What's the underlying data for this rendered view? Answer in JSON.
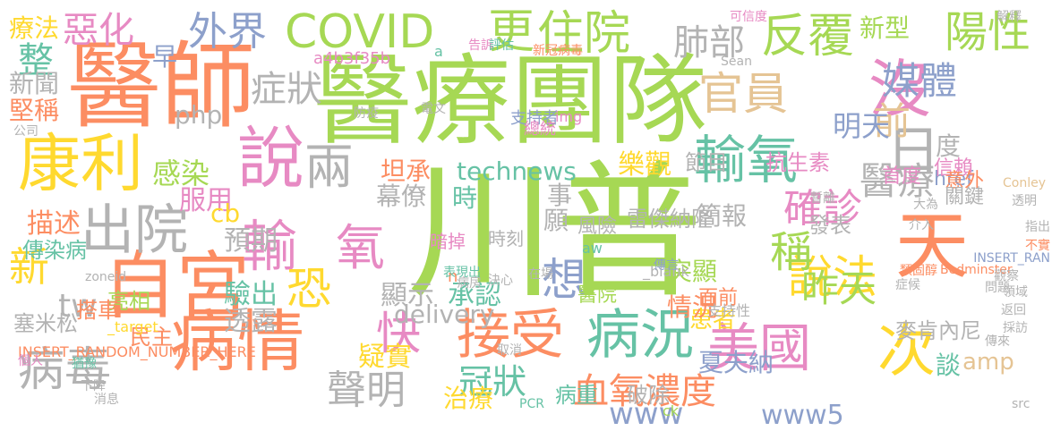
{
  "palette": {
    "green": "#a6d854",
    "orange": "#fc8d62",
    "yellow": "#ffd92f",
    "blue": "#8da0cb",
    "pink": "#e78ac3",
    "gray": "#b3b3b3",
    "tan": "#e5c494",
    "teal": "#66c2a5"
  },
  "words": [
    {
      "text": "川普",
      "color": "green"
    },
    {
      "text": "醫療團隊",
      "color": "green"
    },
    {
      "text": "醫師",
      "color": "orange"
    },
    {
      "text": "自宮",
      "color": "orange"
    },
    {
      "text": "天",
      "color": "orange"
    },
    {
      "text": "說",
      "color": "pink"
    },
    {
      "text": "康利",
      "color": "yellow"
    },
    {
      "text": "病情",
      "color": "orange"
    },
    {
      "text": "出院",
      "color": "gray"
    },
    {
      "text": "輸氧",
      "color": "teal"
    },
    {
      "text": "輸",
      "color": "pink"
    },
    {
      "text": "氧",
      "color": "pink"
    },
    {
      "text": "兩",
      "color": "gray"
    },
    {
      "text": "日",
      "color": "gray"
    },
    {
      "text": "沒",
      "color": "pink"
    },
    {
      "text": "接受",
      "color": "orange"
    },
    {
      "text": "病況",
      "color": "teal"
    },
    {
      "text": "美國",
      "color": "pink"
    },
    {
      "text": "次",
      "color": "yellow"
    },
    {
      "text": "病毒",
      "color": "gray"
    },
    {
      "text": "說法",
      "color": "yellow"
    },
    {
      "text": "確診",
      "color": "pink"
    },
    {
      "text": "稱",
      "color": "green"
    },
    {
      "text": "前",
      "color": "tan"
    },
    {
      "text": "COVID",
      "color": "green"
    },
    {
      "text": "更",
      "color": "green"
    },
    {
      "text": "住院",
      "color": "green"
    },
    {
      "text": "反覆",
      "color": "green"
    },
    {
      "text": "陽性",
      "color": "green"
    },
    {
      "text": "外界",
      "color": "blue"
    },
    {
      "text": "惡化",
      "color": "pink"
    },
    {
      "text": "肺部",
      "color": "gray"
    },
    {
      "text": "官員",
      "color": "tan"
    },
    {
      "text": "媒體",
      "color": "blue"
    },
    {
      "text": "新型",
      "color": "green"
    },
    {
      "text": "症狀",
      "color": "gray"
    },
    {
      "text": "恐",
      "color": "yellow"
    },
    {
      "text": "快",
      "color": "pink"
    },
    {
      "text": "想",
      "color": "blue"
    },
    {
      "text": "新",
      "color": "yellow"
    },
    {
      "text": "tw",
      "color": "gray"
    },
    {
      "text": "聲明",
      "color": "gray"
    },
    {
      "text": "冠狀",
      "color": "teal"
    },
    {
      "text": "血氧",
      "color": "orange"
    },
    {
      "text": "濃度",
      "color": "orange"
    },
    {
      "text": "www",
      "color": "blue"
    },
    {
      "text": "www5",
      "color": "blue"
    },
    {
      "text": "technews",
      "color": "teal"
    },
    {
      "text": "坦承",
      "color": "orange"
    },
    {
      "text": "樂觀",
      "color": "yellow"
    },
    {
      "text": "節目",
      "color": "gray"
    },
    {
      "text": "昨天",
      "color": "green"
    },
    {
      "text": "明天",
      "color": "blue"
    },
    {
      "text": "醫療",
      "color": "gray"
    },
    {
      "text": "度",
      "color": "gray"
    },
    {
      "text": "感染",
      "color": "green"
    },
    {
      "text": "服用",
      "color": "pink"
    },
    {
      "text": "描述",
      "color": "orange"
    },
    {
      "text": "預期",
      "color": "gray"
    },
    {
      "text": "傳染病",
      "color": "teal"
    },
    {
      "text": "塞米松",
      "color": "gray"
    },
    {
      "text": "驗出",
      "color": "teal"
    },
    {
      "text": "透露",
      "color": "gray"
    },
    {
      "text": "顯示",
      "color": "gray"
    },
    {
      "text": "delivery",
      "color": "gray"
    },
    {
      "text": "承認",
      "color": "teal"
    },
    {
      "text": "疑實",
      "color": "yellow"
    },
    {
      "text": "治療",
      "color": "yellow"
    },
    {
      "text": "夏夫納",
      "color": "blue"
    },
    {
      "text": "患者",
      "color": "yellow"
    },
    {
      "text": "情況",
      "color": "orange"
    },
    {
      "text": "amp",
      "color": "tan"
    },
    {
      "text": "突顯",
      "color": "green"
    },
    {
      "text": "簡報",
      "color": "gray"
    },
    {
      "text": "發表",
      "color": "gray"
    },
    {
      "text": "麥肯內尼",
      "color": "gray"
    },
    {
      "text": "談",
      "color": "teal"
    },
    {
      "text": "整",
      "color": "teal"
    },
    {
      "text": "療法",
      "color": "yellow"
    },
    {
      "text": "新聞",
      "color": "gray"
    },
    {
      "text": "堅稱",
      "color": "orange"
    },
    {
      "text": "早",
      "color": "blue"
    },
    {
      "text": "抗生素",
      "color": "pink"
    },
    {
      "text": "php",
      "color": "gray"
    },
    {
      "text": "cb",
      "color": "yellow"
    },
    {
      "text": "幕僚",
      "color": "gray"
    },
    {
      "text": "時",
      "color": "teal"
    },
    {
      "text": "事",
      "color": "gray"
    },
    {
      "text": "願",
      "color": "gray"
    },
    {
      "text": "雷傑納隆",
      "color": "gray"
    },
    {
      "text": "首度",
      "color": "pink"
    },
    {
      "text": "href",
      "color": "blue"
    },
    {
      "text": "信賴",
      "color": "pink"
    },
    {
      "text": "意外",
      "color": "orange"
    },
    {
      "text": "關鍵",
      "color": "gray"
    },
    {
      "text": "風險",
      "color": "gray"
    },
    {
      "text": "時刻",
      "color": "gray"
    },
    {
      "text": "暗掉",
      "color": "pink"
    },
    {
      "text": "亮相",
      "color": "green"
    },
    {
      "text": "搭車",
      "color": "orange"
    },
    {
      "text": "民主",
      "color": "orange"
    },
    {
      "text": "醫院",
      "color": "green"
    },
    {
      "text": "病重",
      "color": "teal"
    },
    {
      "text": "破除",
      "color": "gray"
    },
    {
      "text": "面前",
      "color": "orange"
    },
    {
      "text": "支持者",
      "color": "blue"
    },
    {
      "text": "總統",
      "color": "pink"
    },
    {
      "text": "a4b3f35b",
      "color": "pink"
    },
    {
      "text": "INSERT_RANDOM_NUMBER_HERE",
      "color": "orange"
    },
    {
      "text": "_blank",
      "color": "gray"
    },
    {
      "text": "_target",
      "color": "yellow"
    },
    {
      "text": "Bedminster",
      "color": "orange"
    },
    {
      "text": "INSERT_RAN",
      "color": "blue"
    },
    {
      "text": "Conley",
      "color": "tan"
    },
    {
      "text": "Sean",
      "color": "gray"
    },
    {
      "text": "zoneid",
      "color": "gray"
    },
    {
      "text": "img",
      "color": "pink"
    },
    {
      "text": "n",
      "color": "orange"
    },
    {
      "text": "PCR",
      "color": "teal"
    },
    {
      "text": "ck",
      "color": "green"
    },
    {
      "text": "src",
      "color": "gray"
    },
    {
      "text": "aw",
      "color": "teal"
    },
    {
      "text": "a",
      "color": "teal"
    },
    {
      "text": "告訴",
      "color": "pink"
    },
    {
      "text": "評估",
      "color": "teal"
    },
    {
      "text": "可信度",
      "color": "pink"
    },
    {
      "text": "暫離",
      "color": "gray"
    },
    {
      "text": "新冠病毒",
      "color": "orange"
    },
    {
      "text": "決心",
      "color": "gray"
    },
    {
      "text": "在場",
      "color": "gray"
    },
    {
      "text": "表現出",
      "color": "teal"
    },
    {
      "text": "支持性",
      "color": "gray"
    },
    {
      "text": "防疫",
      "color": "gray"
    },
    {
      "text": "類固醇",
      "color": "orange"
    },
    {
      "text": "取消",
      "color": "gray"
    },
    {
      "text": "公司",
      "color": "gray"
    },
    {
      "text": "解釋",
      "color": "gray"
    },
    {
      "text": "傳言",
      "color": "blue"
    },
    {
      "text": "病房",
      "color": "gray"
    },
    {
      "text": "症候",
      "color": "gray"
    },
    {
      "text": "大為",
      "color": "gray"
    },
    {
      "text": "介入",
      "color": "gray"
    },
    {
      "text": "透明",
      "color": "gray"
    },
    {
      "text": "指出",
      "color": "gray"
    },
    {
      "text": "不實",
      "color": "orange"
    },
    {
      "text": "個人",
      "color": "pink"
    },
    {
      "text": "猶豫",
      "color": "teal"
    },
    {
      "text": "下降",
      "color": "gray"
    },
    {
      "text": "消息",
      "color": "gray"
    },
    {
      "text": "傳來",
      "color": "gray"
    },
    {
      "text": "問題",
      "color": "gray"
    },
    {
      "text": "觀察",
      "color": "gray"
    },
    {
      "text": "電文",
      "color": "gray"
    },
    {
      "text": "領域",
      "color": "gray"
    },
    {
      "text": "返回",
      "color": "gray"
    },
    {
      "text": "採訪",
      "color": "gray"
    }
  ]
}
